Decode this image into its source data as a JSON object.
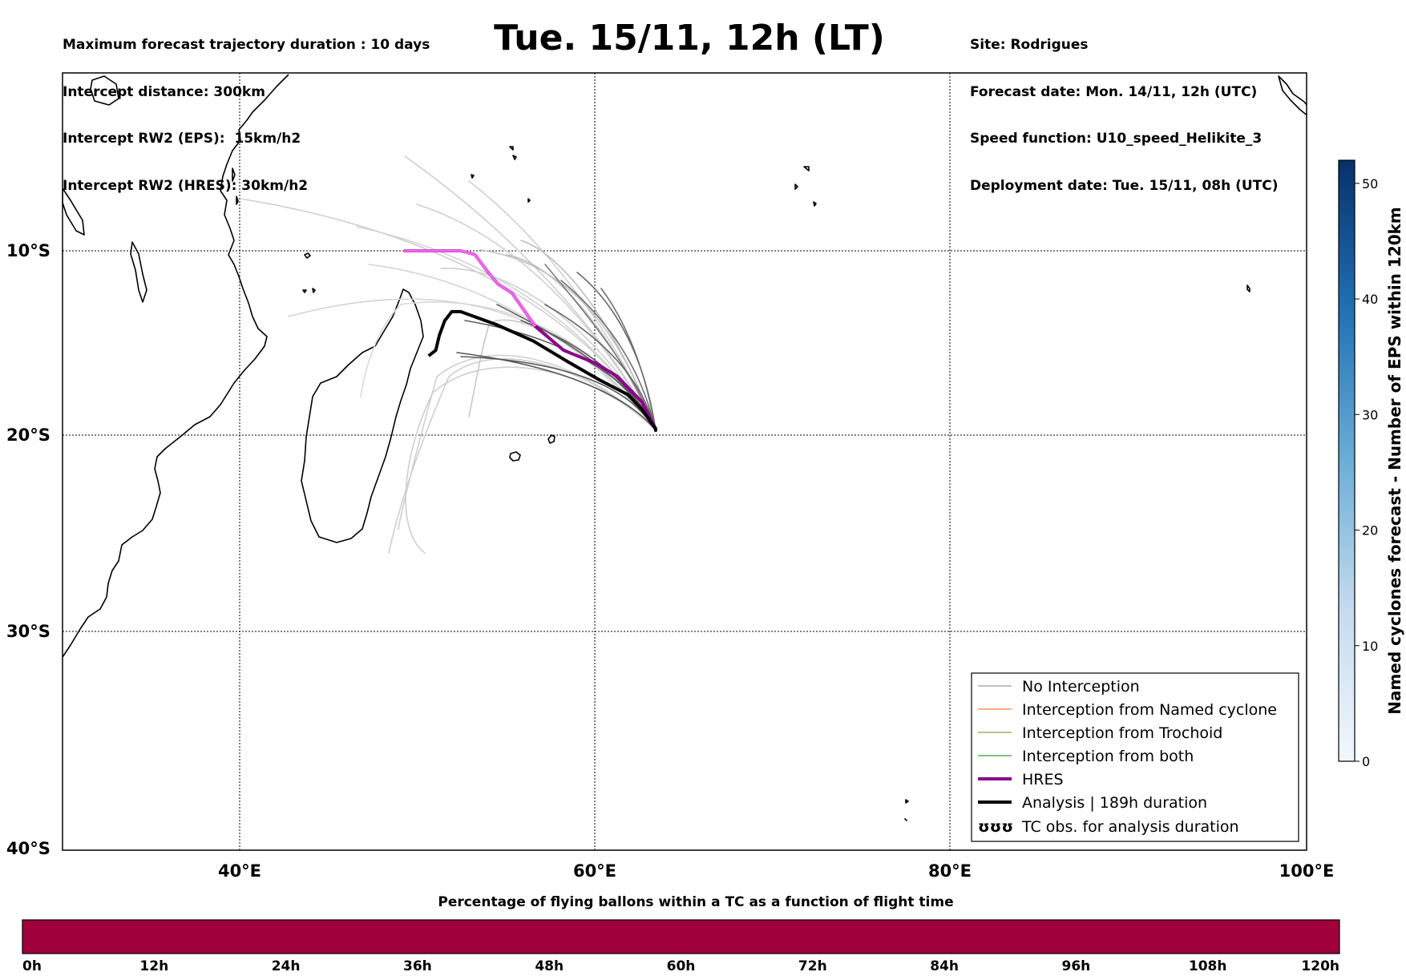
{
  "header_left": [
    "Maximum forecast trajectory duration : 10 days",
    "Intercept distance: 300km",
    "Intercept RW2 (EPS):  15km/h2",
    "Intercept RW2 (HRES): 30km/h2"
  ],
  "header_right": [
    "Site: Rodrigues",
    "Forecast date: Mon. 14/11, 12h (UTC)",
    "Speed function: U10_speed_Helikite_3",
    "Deployment date: Tue. 15/11, 08h (UTC)"
  ],
  "title": "Tue. 15/11, 12h (LT)",
  "map": {
    "lon_labels": [
      "40°E",
      "60°E",
      "80°E",
      "100°E"
    ],
    "lat_labels": [
      "10°S",
      "20°S",
      "30°S",
      "40°S"
    ],
    "lon_range": [
      30,
      100
    ],
    "lat_range": [
      -40,
      0
    ],
    "gridlines": "dotted",
    "release_site": {
      "lon": 63.4,
      "lat": -19.7
    },
    "hres_track": [
      [
        63.4,
        -19.7
      ],
      [
        62.6,
        -18.2
      ],
      [
        61.2,
        -16.8
      ],
      [
        60,
        -16.1
      ],
      [
        58.2,
        -15.4
      ],
      [
        56.6,
        -14.1
      ],
      [
        55.3,
        -12.3
      ],
      [
        54.5,
        -11.8
      ],
      [
        53.9,
        -11.1
      ],
      [
        53.2,
        -10.2
      ],
      [
        52.4,
        -10
      ],
      [
        49.2,
        -10
      ]
    ],
    "analysis_track": [
      [
        63.4,
        -19.7
      ],
      [
        62.6,
        -18.6
      ],
      [
        61.8,
        -17.8
      ],
      [
        60.2,
        -17
      ],
      [
        58.4,
        -16
      ],
      [
        56.5,
        -14.9
      ],
      [
        54.4,
        -14
      ],
      [
        52.4,
        -13.3
      ],
      [
        51.9,
        -13.3
      ],
      [
        51.5,
        -13.8
      ],
      [
        51.2,
        -14.6
      ],
      [
        51,
        -15.4
      ],
      [
        50.6,
        -15.7
      ]
    ]
  },
  "legend": {
    "items": [
      {
        "label": "No Interception",
        "color": "#808080",
        "width": 1
      },
      {
        "label": "Interception from Named cyclone",
        "color": "#ff5a00",
        "width": 1
      },
      {
        "label": "Interception from Trochoid",
        "color": "#808000",
        "width": 1
      },
      {
        "label": "Interception from both",
        "color": "#008000",
        "width": 1
      },
      {
        "label": "HRES",
        "color": "#8b008b",
        "width": 4
      },
      {
        "label": "Analysis | 189h duration",
        "color": "#000000",
        "width": 4
      },
      {
        "label": "TC obs. for analysis duration",
        "symbol": "ʊʊʊ"
      }
    ]
  },
  "colorbar": {
    "label": "Named cyclones forecast - Number of EPS within 120km",
    "ticks": [
      "0",
      "10",
      "20",
      "30",
      "40",
      "50"
    ],
    "range": [
      0,
      52
    ]
  },
  "bottom_bar": {
    "title": "Percentage of flying ballons within a TC as a function of flight time",
    "ticks": [
      "0h",
      "12h",
      "24h",
      "36h",
      "48h",
      "60h",
      "72h",
      "84h",
      "96h",
      "108h",
      "120h"
    ],
    "fill_color": "#a0003c"
  }
}
